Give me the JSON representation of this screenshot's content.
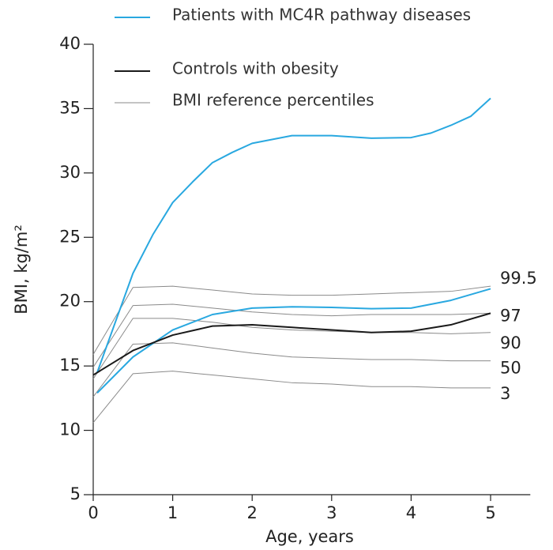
{
  "chart_data": {
    "type": "line",
    "xlabel": "Age, years",
    "ylabel": "BMI, kg/m²",
    "xlim": [
      0,
      5.5
    ],
    "ylim": [
      5,
      40
    ],
    "xticks": [
      0,
      1,
      2,
      3,
      4,
      5
    ],
    "yticks": [
      5,
      10,
      15,
      20,
      25,
      30,
      35,
      40
    ],
    "series": [
      {
        "name": "Patients with MC4R pathway diseases",
        "color": "#29a8e0",
        "x": [
          0.05,
          0.5,
          0.75,
          1,
          1.25,
          1.5,
          1.75,
          2,
          2.5,
          3,
          3.5,
          4,
          4.25,
          4.5,
          4.75,
          5
        ],
        "values": [
          14.5,
          22.2,
          25.2,
          27.7,
          29.3,
          30.8,
          31.6,
          32.3,
          32.9,
          32.9,
          32.7,
          32.75,
          33.1,
          33.7,
          34.4,
          35.8
        ]
      },
      {
        "color": "#29a8e0",
        "x": [
          0.05,
          0.5,
          1,
          1.5,
          2,
          2.5,
          3,
          3.5,
          4,
          4.5,
          5
        ],
        "values": [
          12.9,
          15.7,
          17.8,
          19.0,
          19.5,
          19.6,
          19.55,
          19.45,
          19.5,
          20.1,
          21.0
        ]
      },
      {
        "name": "Controls with obesity",
        "color": "#1a1a1a",
        "x": [
          0,
          0.5,
          1,
          1.5,
          2,
          2.5,
          3,
          3.5,
          4,
          4.5,
          5
        ],
        "values": [
          14.3,
          16.2,
          17.4,
          18.1,
          18.2,
          18.0,
          17.8,
          17.6,
          17.7,
          18.2,
          19.1
        ]
      }
    ],
    "percentiles": {
      "name": "BMI reference percentiles",
      "color": "#8a8a8a",
      "x": [
        0,
        0.5,
        1,
        1.5,
        2,
        2.5,
        3,
        3.5,
        4,
        4.5,
        5
      ],
      "lines": [
        {
          "label": "99.5",
          "values": [
            15.9,
            21.1,
            21.2,
            20.9,
            20.6,
            20.5,
            20.5,
            20.6,
            20.7,
            20.8,
            21.2
          ]
        },
        {
          "label": "97",
          "values": [
            14.9,
            19.7,
            19.8,
            19.5,
            19.2,
            19.0,
            18.9,
            19.0,
            19.0,
            19.0,
            19.1
          ]
        },
        {
          "label": "90",
          "values": [
            14.0,
            18.7,
            18.7,
            18.4,
            18.0,
            17.8,
            17.7,
            17.6,
            17.6,
            17.5,
            17.6
          ]
        },
        {
          "label": "50",
          "values": [
            12.6,
            16.7,
            16.8,
            16.4,
            16.0,
            15.7,
            15.6,
            15.5,
            15.5,
            15.4,
            15.4
          ]
        },
        {
          "label": "3",
          "values": [
            10.6,
            14.4,
            14.6,
            14.3,
            14.0,
            13.7,
            13.6,
            13.4,
            13.4,
            13.3,
            13.3
          ]
        }
      ]
    }
  }
}
